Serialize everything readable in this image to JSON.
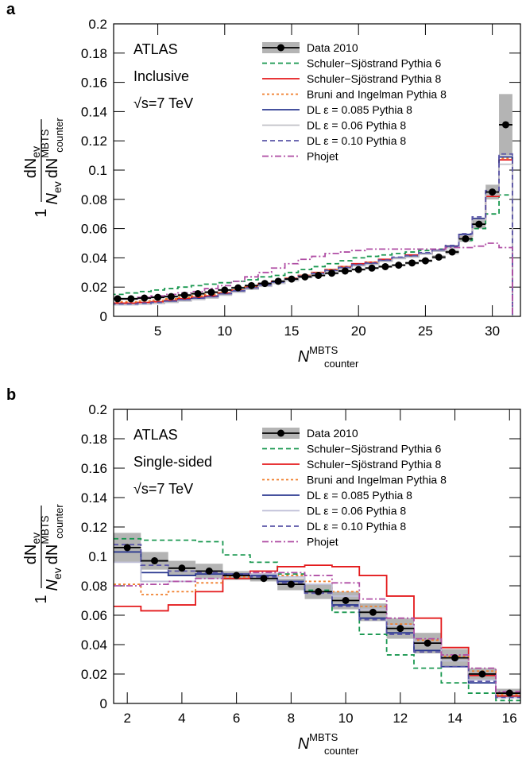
{
  "chart_data": [
    {
      "type": "step",
      "panel_label": "a",
      "annotations": [
        "ATLAS",
        "Inclusive",
        "√s=7 TeV"
      ],
      "ylabel": {
        "one": "1",
        "num_d": "dN",
        "num_sub": "ev",
        "den_n": "N",
        "den_n_sub": "ev",
        "den_d": "dN",
        "den_sup": "MBTS",
        "den_sub": "counter"
      },
      "xlabel": {
        "main": "N",
        "sup": "MBTS",
        "sub": "counter"
      },
      "xlim": [
        1.7,
        32.1
      ],
      "xticks": [
        5,
        10,
        15,
        20,
        25,
        30
      ],
      "ylim": [
        0,
        0.2
      ],
      "yticks": [
        0,
        0.02,
        0.04,
        0.06,
        0.08,
        0.1,
        0.12,
        0.14,
        0.16,
        0.18,
        0.2
      ],
      "x": [
        2,
        3,
        4,
        5,
        6,
        7,
        8,
        9,
        10,
        11,
        12,
        13,
        14,
        15,
        16,
        17,
        18,
        19,
        20,
        21,
        22,
        23,
        24,
        25,
        26,
        27,
        28,
        29,
        30,
        31
      ],
      "series": [
        {
          "name": "Data 2010",
          "color": "#000000",
          "band_color": "#b4b4b4",
          "style": "points",
          "values": [
            0.012,
            0.012,
            0.0125,
            0.013,
            0.0135,
            0.0145,
            0.0155,
            0.0165,
            0.018,
            0.0195,
            0.021,
            0.0225,
            0.024,
            0.0255,
            0.027,
            0.028,
            0.0295,
            0.031,
            0.032,
            0.033,
            0.034,
            0.035,
            0.0365,
            0.038,
            0.0405,
            0.044,
            0.053,
            0.063,
            0.085,
            0.131
          ],
          "errors": [
            0.0008,
            0.0008,
            0.0008,
            0.0008,
            0.0008,
            0.0008,
            0.0008,
            0.0008,
            0.0008,
            0.0008,
            0.0008,
            0.0008,
            0.0008,
            0.0008,
            0.0008,
            0.0008,
            0.0008,
            0.0008,
            0.0008,
            0.0008,
            0.0008,
            0.0008,
            0.001,
            0.001,
            0.0012,
            0.0015,
            0.002,
            0.003,
            0.005,
            0.021
          ]
        },
        {
          "name": "Schuler−Sjöstrand Pythia 6",
          "color": "#1a9850",
          "style": "dashed",
          "values": [
            0.015,
            0.016,
            0.017,
            0.018,
            0.019,
            0.02,
            0.021,
            0.022,
            0.023,
            0.024,
            0.025,
            0.027,
            0.028,
            0.03,
            0.032,
            0.034,
            0.036,
            0.038,
            0.04,
            0.041,
            0.042,
            0.043,
            0.044,
            0.045,
            0.046,
            0.047,
            0.052,
            0.06,
            0.07,
            0.083
          ]
        },
        {
          "name": "Schuler−Sjöstrand Pythia 8",
          "color": "#e41a1c",
          "style": "solid",
          "values": [
            0.009,
            0.009,
            0.0095,
            0.01,
            0.011,
            0.012,
            0.013,
            0.014,
            0.016,
            0.018,
            0.02,
            0.022,
            0.024,
            0.026,
            0.028,
            0.03,
            0.032,
            0.034,
            0.036,
            0.037,
            0.039,
            0.04,
            0.042,
            0.043,
            0.045,
            0.048,
            0.055,
            0.066,
            0.082,
            0.107
          ]
        },
        {
          "name": "Bruni and Ingelman Pythia 8",
          "color": "#f07f2c",
          "style": "dotted",
          "values": [
            0.01,
            0.01,
            0.0105,
            0.011,
            0.012,
            0.013,
            0.014,
            0.015,
            0.0165,
            0.018,
            0.02,
            0.022,
            0.024,
            0.026,
            0.028,
            0.03,
            0.032,
            0.034,
            0.035,
            0.037,
            0.038,
            0.04,
            0.041,
            0.043,
            0.045,
            0.048,
            0.055,
            0.066,
            0.083,
            0.108
          ]
        },
        {
          "name": "DL ε = 0.085 Pythia 8",
          "color": "#2b3990",
          "style": "solid",
          "values": [
            0.008,
            0.008,
            0.0085,
            0.009,
            0.01,
            0.011,
            0.012,
            0.013,
            0.015,
            0.017,
            0.019,
            0.021,
            0.023,
            0.025,
            0.027,
            0.029,
            0.031,
            0.033,
            0.035,
            0.036,
            0.038,
            0.04,
            0.041,
            0.043,
            0.045,
            0.048,
            0.056,
            0.067,
            0.085,
            0.109
          ]
        },
        {
          "name": "DL ε = 0.06 Pythia 8",
          "color": "#c0c0c8",
          "style": "solid",
          "values": [
            0.008,
            0.008,
            0.0085,
            0.009,
            0.0095,
            0.0105,
            0.0115,
            0.0125,
            0.0145,
            0.0165,
            0.0185,
            0.0205,
            0.0225,
            0.0245,
            0.0265,
            0.0285,
            0.0305,
            0.0325,
            0.0345,
            0.0355,
            0.0375,
            0.0395,
            0.0405,
            0.0425,
            0.0445,
            0.047,
            0.055,
            0.066,
            0.083,
            0.104
          ]
        },
        {
          "name": "DL ε = 0.10 Pythia 8",
          "color": "#5a55a8",
          "style": "dashed",
          "values": [
            0.0085,
            0.0085,
            0.009,
            0.0095,
            0.0105,
            0.0115,
            0.0125,
            0.0135,
            0.0155,
            0.0175,
            0.0195,
            0.0215,
            0.0235,
            0.0255,
            0.0275,
            0.0295,
            0.0315,
            0.0335,
            0.0355,
            0.0365,
            0.0385,
            0.0405,
            0.0415,
            0.0435,
            0.0455,
            0.0485,
            0.0565,
            0.068,
            0.086,
            0.111
          ]
        },
        {
          "name": "Phojet",
          "color": "#b04fa5",
          "style": "dashdot",
          "values": [
            0.012,
            0.012,
            0.013,
            0.014,
            0.015,
            0.016,
            0.017,
            0.019,
            0.021,
            0.024,
            0.027,
            0.03,
            0.033,
            0.036,
            0.039,
            0.041,
            0.043,
            0.044,
            0.045,
            0.046,
            0.046,
            0.046,
            0.046,
            0.046,
            0.046,
            0.047,
            0.047,
            0.048,
            0.05,
            0.047
          ]
        }
      ]
    },
    {
      "type": "step",
      "panel_label": "b",
      "annotations": [
        "ATLAS",
        "Single-sided",
        "√s=7 TeV"
      ],
      "ylabel": {
        "one": "1",
        "num_d": "dN",
        "num_sub": "ev",
        "den_n": "N",
        "den_n_sub": "ev",
        "den_d": "dN",
        "den_sup": "MBTS",
        "den_sub": "counter"
      },
      "xlabel": {
        "main": "N",
        "sup": "MBTS",
        "sub": "counter"
      },
      "xlim": [
        1.5,
        16.4
      ],
      "xticks": [
        2,
        4,
        6,
        8,
        10,
        12,
        14,
        16
      ],
      "ylim": [
        0,
        0.2
      ],
      "yticks": [
        0,
        0.02,
        0.04,
        0.06,
        0.08,
        0.1,
        0.12,
        0.14,
        0.16,
        0.18,
        0.2
      ],
      "x": [
        2,
        3,
        4,
        5,
        6,
        7,
        8,
        9,
        10,
        11,
        12,
        13,
        14,
        15,
        16
      ],
      "series": [
        {
          "name": "Data 2010",
          "color": "#000000",
          "band_color": "#b4b4b4",
          "style": "points",
          "values": [
            0.106,
            0.097,
            0.092,
            0.09,
            0.087,
            0.085,
            0.081,
            0.076,
            0.07,
            0.062,
            0.051,
            0.041,
            0.031,
            0.02,
            0.007
          ],
          "errors": [
            0.01,
            0.006,
            0.005,
            0.005,
            0.003,
            0.002,
            0.004,
            0.005,
            0.006,
            0.006,
            0.007,
            0.007,
            0.006,
            0.004,
            0.003
          ]
        },
        {
          "name": "Schuler−Sjöstrand Pythia 6",
          "color": "#1a9850",
          "style": "dashed",
          "values": [
            0.112,
            0.111,
            0.111,
            0.11,
            0.101,
            0.096,
            0.088,
            0.077,
            0.062,
            0.047,
            0.033,
            0.024,
            0.014,
            0.007,
            0.002
          ]
        },
        {
          "name": "Schuler−Sjöstrand Pythia 8",
          "color": "#e41a1c",
          "style": "solid",
          "values": [
            0.066,
            0.063,
            0.067,
            0.076,
            0.085,
            0.09,
            0.093,
            0.094,
            0.093,
            0.087,
            0.073,
            0.058,
            0.038,
            0.019,
            0.005
          ]
        },
        {
          "name": "Bruni and Ingelman Pythia 8",
          "color": "#f07f2c",
          "style": "dotted",
          "values": [
            0.081,
            0.074,
            0.076,
            0.082,
            0.086,
            0.088,
            0.087,
            0.083,
            0.076,
            0.066,
            0.054,
            0.043,
            0.032,
            0.022,
            0.006
          ]
        },
        {
          "name": "DL ε = 0.085 Pythia 8",
          "color": "#2b3990",
          "style": "solid",
          "values": [
            0.103,
            0.089,
            0.087,
            0.088,
            0.088,
            0.087,
            0.083,
            0.076,
            0.067,
            0.058,
            0.048,
            0.036,
            0.025,
            0.014,
            0.004
          ]
        },
        {
          "name": "DL ε = 0.06 Pythia 8",
          "color": "#c0c0d8",
          "style": "solid",
          "values": [
            0.096,
            0.083,
            0.083,
            0.085,
            0.087,
            0.088,
            0.086,
            0.081,
            0.073,
            0.064,
            0.053,
            0.041,
            0.029,
            0.016,
            0.004
          ]
        },
        {
          "name": "DL ε = 0.10 Pythia 8",
          "color": "#5a55a8",
          "style": "dashed",
          "values": [
            0.108,
            0.094,
            0.09,
            0.089,
            0.088,
            0.086,
            0.082,
            0.075,
            0.066,
            0.057,
            0.047,
            0.035,
            0.025,
            0.015,
            0.004
          ]
        },
        {
          "name": "Phojet",
          "color": "#b04fa5",
          "style": "dashdot",
          "values": [
            0.08,
            0.081,
            0.083,
            0.085,
            0.087,
            0.089,
            0.089,
            0.087,
            0.082,
            0.071,
            0.058,
            0.044,
            0.033,
            0.024,
            0.008
          ]
        }
      ]
    }
  ]
}
